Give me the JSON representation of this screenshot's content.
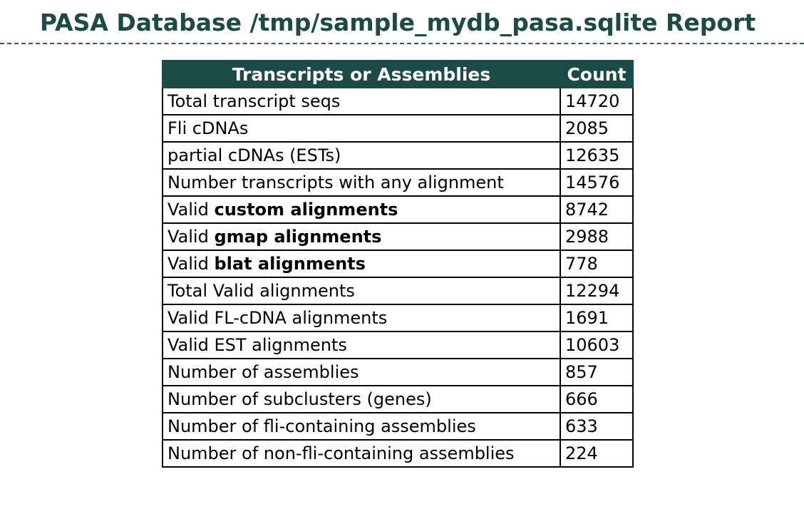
{
  "page": {
    "title": "PASA Database /tmp/sample_mydb_pasa.sqlite Report"
  },
  "table": {
    "headers": {
      "label": "Transcripts or Assemblies",
      "count": "Count"
    },
    "rows": [
      {
        "prefix": "Total transcript seqs",
        "bold": "",
        "count": "14720"
      },
      {
        "prefix": "Fli cDNAs",
        "bold": "",
        "count": "2085"
      },
      {
        "prefix": "partial cDNAs (ESTs)",
        "bold": "",
        "count": "12635"
      },
      {
        "prefix": "Number transcripts with any alignment",
        "bold": "",
        "count": "14576"
      },
      {
        "prefix": "Valid ",
        "bold": "custom alignments",
        "count": "8742"
      },
      {
        "prefix": "Valid ",
        "bold": "gmap alignments",
        "count": "2988"
      },
      {
        "prefix": "Valid ",
        "bold": "blat alignments",
        "count": "778"
      },
      {
        "prefix": "Total Valid alignments",
        "bold": "",
        "count": "12294"
      },
      {
        "prefix": "Valid FL-cDNA alignments",
        "bold": "",
        "count": "1691"
      },
      {
        "prefix": "Valid EST alignments",
        "bold": "",
        "count": "10603"
      },
      {
        "prefix": "Number of assemblies",
        "bold": "",
        "count": "857"
      },
      {
        "prefix": "Number of subclusters (genes)",
        "bold": "",
        "count": "666"
      },
      {
        "prefix": "Number of fli-containing assemblies",
        "bold": "",
        "count": "633"
      },
      {
        "prefix": "Number of non-fli-containing assemblies",
        "bold": "",
        "count": "224"
      }
    ]
  },
  "colors": {
    "title": "#1b4a47",
    "header_bg": "#1b4a47",
    "header_text": "#ffffff",
    "rule": "#2c5e5a",
    "border": "#000000"
  }
}
